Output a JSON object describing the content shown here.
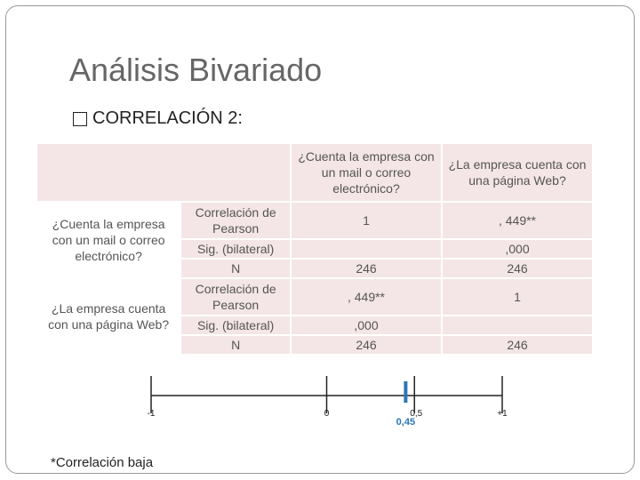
{
  "title": "Análisis Bivariado",
  "bullet": "CORRELACIÓN 2:",
  "table": {
    "columns": [
      "¿Cuenta la empresa con un mail o correo electrónico?",
      "¿La empresa cuenta con una página Web?"
    ],
    "groups": [
      {
        "label": "¿Cuenta la empresa con un mail o correo electrónico?",
        "rows": [
          {
            "stat": "Correlación de Pearson",
            "values": [
              "1",
              ", 449**"
            ]
          },
          {
            "stat": "Sig. (bilateral)",
            "values": [
              null,
              ",000"
            ]
          },
          {
            "stat": "N",
            "values": [
              "246",
              "246"
            ]
          }
        ]
      },
      {
        "label": "¿La empresa cuenta con una página Web?",
        "rows": [
          {
            "stat": "Correlación de Pearson",
            "values": [
              ", 449**",
              "1"
            ]
          },
          {
            "stat": "Sig. (bilateral)",
            "values": [
              ",000",
              null
            ]
          },
          {
            "stat": "N",
            "values": [
              "246",
              "246"
            ]
          }
        ]
      }
    ]
  },
  "scale": {
    "xlim": [
      -1,
      1
    ],
    "ticks": [
      {
        "value": -1,
        "label": "-1"
      },
      0,
      {
        "value": 0.5,
        "label": "0,5"
      },
      {
        "value": 1,
        "label": "+1"
      }
    ],
    "marker": {
      "value": 0.45,
      "label": "0,45"
    }
  },
  "note": "*Correlación baja"
}
